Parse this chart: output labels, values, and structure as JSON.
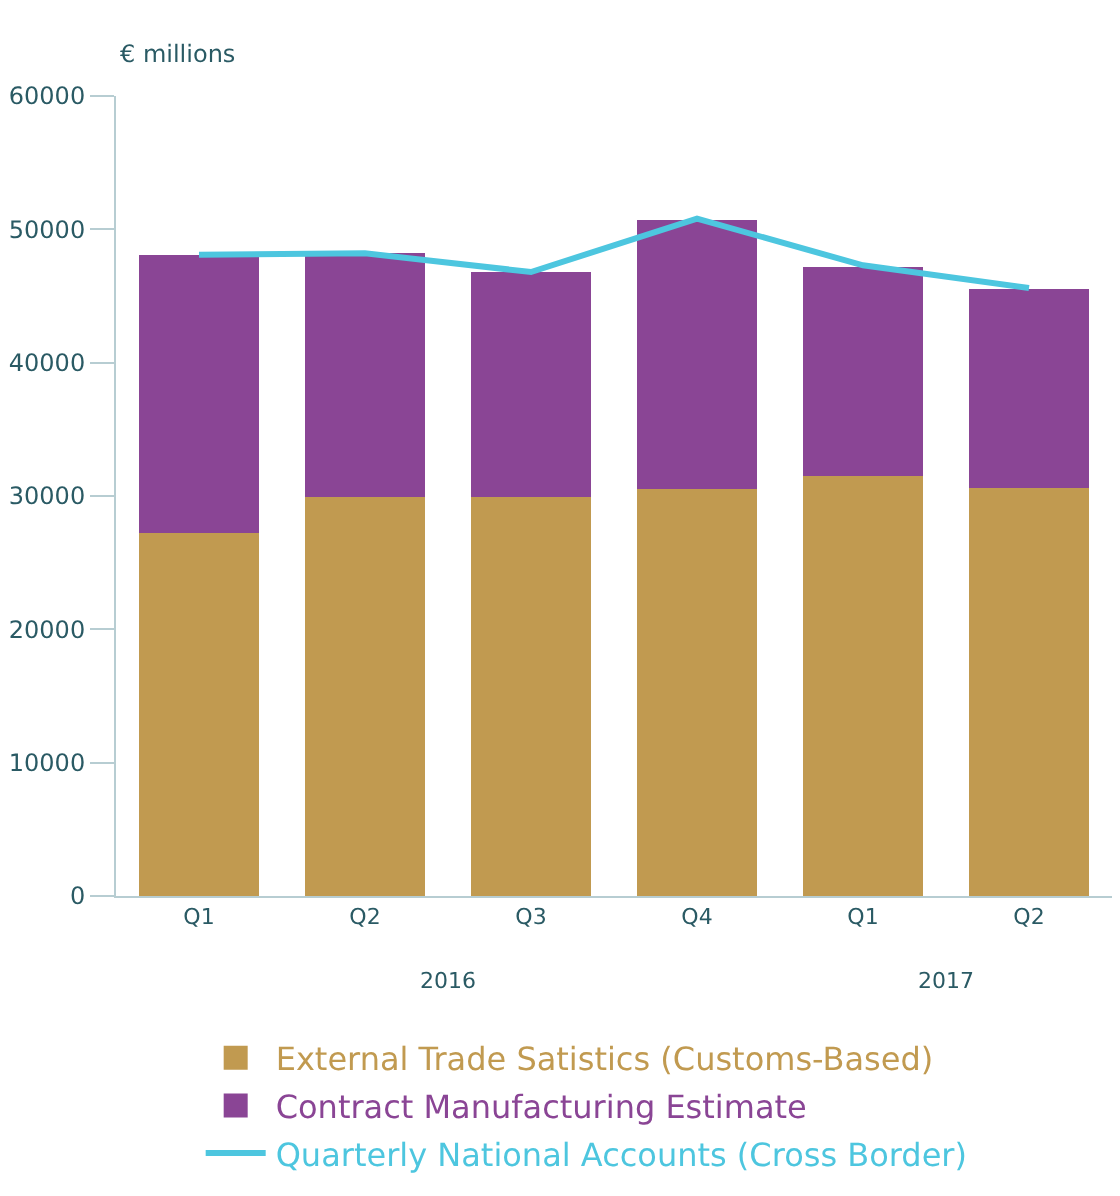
{
  "chart_data": {
    "type": "bar",
    "stacked": true,
    "ylabel": "€ millions",
    "categories": [
      "Q1",
      "Q2",
      "Q3",
      "Q4",
      "Q1",
      "Q2"
    ],
    "series": [
      {
        "name": "External Trade Satistics (Customs-Based)",
        "color": "#c19a50",
        "values": [
          27200,
          29900,
          29900,
          30500,
          31500,
          30600
        ]
      },
      {
        "name": "Contract Manufacturing Estimate",
        "color": "#8a4595",
        "values": [
          20900,
          18300,
          16900,
          20200,
          15700,
          14900
        ]
      },
      {
        "name": "Quarterly National Accounts (Cross Border)",
        "color": "#4dc6df",
        "type": "line",
        "values": [
          48100,
          48200,
          46800,
          50800,
          47300,
          45600
        ]
      }
    ],
    "annotations": [
      "2016",
      "2017"
    ],
    "ylim": [
      0,
      60000
    ],
    "yticks": [
      0,
      10000,
      20000,
      30000,
      40000,
      50000,
      60000
    ],
    "grid": false,
    "legend": "bottom",
    "marker": "none"
  }
}
